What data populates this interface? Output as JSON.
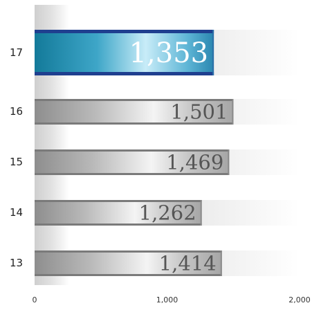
{
  "chart_data": {
    "type": "bar",
    "orientation": "horizontal",
    "categories": [
      "17",
      "16",
      "15",
      "14",
      "13"
    ],
    "values": [
      1353,
      1501,
      1469,
      1262,
      1414
    ],
    "value_labels": [
      "1,353",
      "1,501",
      "1,469",
      "1,262",
      "1,414"
    ],
    "highlight_category": "17",
    "xlim": [
      0,
      2000
    ],
    "x_ticks": [
      0,
      1000,
      2000
    ],
    "x_tick_labels": [
      "0",
      "1,000",
      "2,000"
    ],
    "grid": false,
    "legend": "none",
    "colors": {
      "highlight": "#1e7fb0",
      "highlight_dark": "#1f3f8f",
      "default": "#9a9a9a",
      "track": "#e4e4e4"
    }
  }
}
